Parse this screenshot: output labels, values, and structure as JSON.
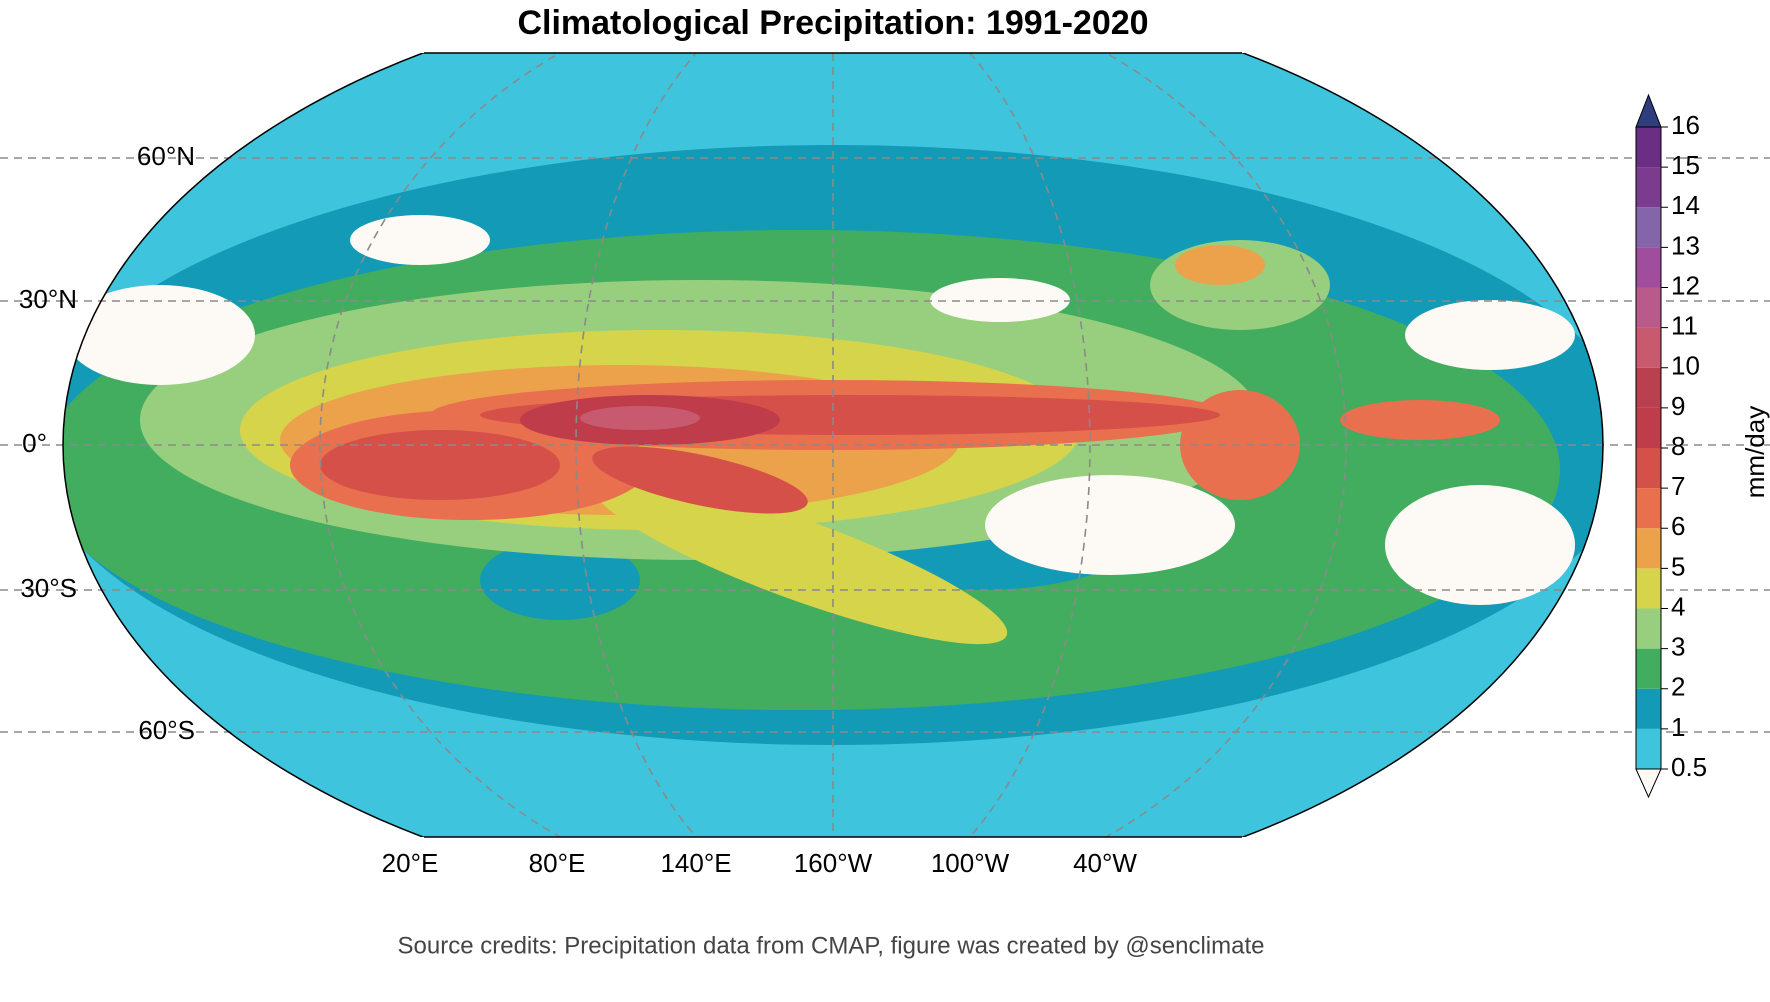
{
  "chart_data": {
    "type": "map",
    "title": "Climatological Precipitation: 1991-2020",
    "lat_labels": [
      "60°N",
      "30°N",
      "0°",
      "30°S",
      "60°S"
    ],
    "lon_labels": [
      "20°E",
      "80°E",
      "140°E",
      "160°W",
      "100°W",
      "40°W"
    ],
    "colorbar": {
      "label": "mm/day",
      "levels": [
        0.5,
        1,
        2,
        3,
        4,
        5,
        6,
        7,
        8,
        9,
        10,
        11,
        12,
        13,
        14,
        15,
        16
      ],
      "colors": [
        "#3fc4dd",
        "#139ab7",
        "#42ad5f",
        "#98cf7e",
        "#d6d44a",
        "#eba24b",
        "#e8704f",
        "#d6504a",
        "#bf3d4a",
        "#b8404f",
        "#c85a70",
        "#b85a8a",
        "#a04d9d",
        "#8565aa",
        "#7b3c90",
        "#6a2f85"
      ],
      "under_color": "#fdfaf5",
      "over_color": "#2e3d7c"
    },
    "source": "Source credits: Precipitation data from CMAP, figure was created by @senclimate"
  }
}
